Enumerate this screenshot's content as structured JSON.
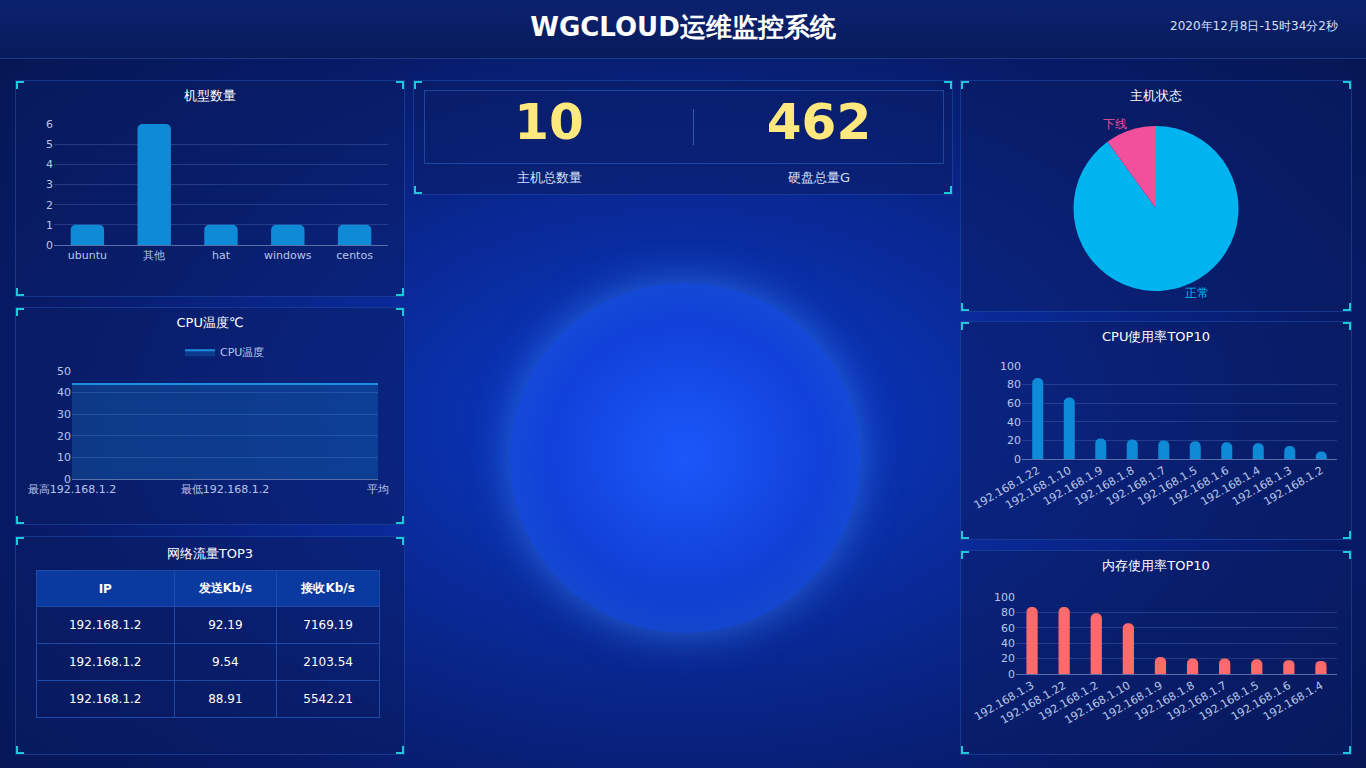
{
  "header": {
    "title": "WGCLOUD运维监控系统",
    "datetime": "2020年12月8日-15时34分2秒"
  },
  "stats": [
    {
      "value": 10,
      "label": "主机总数量"
    },
    {
      "value": 462,
      "label": "硬盘总量G"
    }
  ],
  "table": {
    "title": "网络流量TOP3",
    "columns": [
      "IP",
      "发送Kb/s",
      "接收Kb/s"
    ],
    "rows": [
      [
        "192.168.1.2",
        "92.19",
        "7169.19"
      ],
      [
        "192.168.1.2",
        "9.54",
        "2103.54"
      ],
      [
        "192.168.1.2",
        "88.91",
        "5542.21"
      ]
    ]
  },
  "chart_data": [
    {
      "type": "bar",
      "title": "机型数量",
      "categories": [
        "ubuntu",
        "其他",
        "hat",
        "windows",
        "centos"
      ],
      "values": [
        1,
        6,
        1,
        1,
        1
      ],
      "color": "#0e8ad6",
      "ylim": [
        0,
        6
      ],
      "yticks": [
        0,
        1,
        2,
        3,
        4,
        5,
        6
      ],
      "grid": true
    },
    {
      "type": "area",
      "title": "CPU温度℃",
      "categories": [
        "最高192.168.1.2",
        "最低192.168.1.2",
        "平均"
      ],
      "series": [
        {
          "name": "CPU温度",
          "color": "#1c8fe0",
          "values": [
            44,
            44,
            44
          ]
        }
      ],
      "ylim": [
        0,
        50
      ],
      "yticks": [
        0,
        10,
        20,
        30,
        40,
        50
      ],
      "grid": true,
      "legend": "top"
    },
    {
      "type": "pie",
      "title": "主机状态",
      "categories": [
        "正常",
        "下线"
      ],
      "values": [
        9,
        1
      ],
      "colors": [
        "#00b4ef",
        "#f2509c"
      ]
    },
    {
      "type": "bar",
      "title": "CPU使用率TOP10",
      "categories": [
        "192.168.1.22",
        "192.168.1.10",
        "192.168.1.9",
        "192.168.1.8",
        "192.168.1.7",
        "192.168.1.5",
        "192.168.1.6",
        "192.168.1.4",
        "192.168.1.3",
        "192.168.1.2"
      ],
      "values": [
        87,
        66,
        22,
        21,
        20,
        19,
        18,
        17,
        14,
        8
      ],
      "color": "#0e8ad6",
      "ylim": [
        0,
        100
      ],
      "yticks": [
        0,
        20,
        40,
        60,
        80,
        100
      ],
      "grid": true
    },
    {
      "type": "bar",
      "title": "内存使用率TOP10",
      "categories": [
        "192.168.1.3",
        "192.168.1.22",
        "192.168.1.2",
        "192.168.1.10",
        "192.168.1.9",
        "192.168.1.8",
        "192.168.1.7",
        "192.168.1.5",
        "192.168.1.6",
        "192.168.1.4"
      ],
      "values": [
        87,
        87,
        79,
        66,
        22,
        20,
        20,
        19,
        18,
        17
      ],
      "color": "#ff6b6b",
      "ylim": [
        0,
        100
      ],
      "yticks": [
        0,
        20,
        40,
        60,
        80,
        100
      ],
      "grid": true
    }
  ]
}
